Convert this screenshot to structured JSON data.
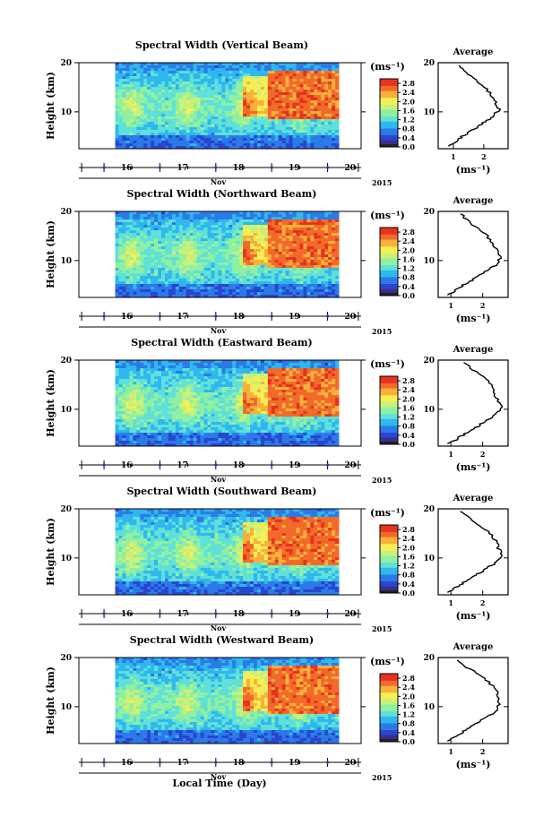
{
  "figure": {
    "xlabel": "Local Time (Day)",
    "month_label": "Nov",
    "year_label": "2015",
    "ylabel": "Height (km)",
    "unit_label": "(ms⁻¹)",
    "average_title": "Average",
    "average_xlabel": "(ms⁻¹)"
  },
  "chart_data": [
    {
      "type": "heatmap",
      "title": "Spectral Width (Vertical Beam)",
      "x_ticks": [
        "16",
        "17",
        "18",
        "19",
        "20"
      ],
      "xlim": [
        15.55,
        20.6
      ],
      "data_start_day": 16.2,
      "data_end_day": 20.2,
      "ylim": [
        2.5,
        20
      ],
      "y_ticks": [
        "10",
        "20"
      ],
      "y_tick_values": [
        10,
        20
      ],
      "colorbar_ticks": [
        "0.0",
        "0.4",
        "0.8",
        "1.2",
        "1.6",
        "2.0",
        "2.4",
        "2.8"
      ],
      "colorbar_range": [
        0,
        3
      ],
      "average": {
        "title": "Average",
        "xlim": [
          0.5,
          2.8
        ],
        "x_ticks": [
          "1",
          "2"
        ],
        "x_tick_values": [
          1,
          2
        ],
        "ylim": [
          2.5,
          20
        ],
        "y_ticks": [
          "10",
          "20"
        ],
        "y_tick_values": [
          10,
          20
        ],
        "profile": [
          [
            0.9,
            3
          ],
          [
            1.1,
            4
          ],
          [
            1.3,
            5
          ],
          [
            1.55,
            6
          ],
          [
            1.8,
            7
          ],
          [
            2.05,
            8
          ],
          [
            2.3,
            9
          ],
          [
            2.5,
            10.5
          ],
          [
            2.4,
            12
          ],
          [
            2.25,
            13.5
          ],
          [
            2.05,
            15
          ],
          [
            1.75,
            16.5
          ],
          [
            1.45,
            18
          ],
          [
            1.2,
            19.5
          ]
        ]
      }
    },
    {
      "type": "heatmap",
      "title": "Spectral Width (Northward Beam)",
      "x_ticks": [
        "16",
        "17",
        "18",
        "19",
        "20"
      ],
      "xlim": [
        15.55,
        20.6
      ],
      "data_start_day": 16.2,
      "data_end_day": 20.2,
      "ylim": [
        2.5,
        20
      ],
      "y_ticks": [
        "10",
        "20"
      ],
      "y_tick_values": [
        10,
        20
      ],
      "colorbar_ticks": [
        "0.0",
        "0.4",
        "0.8",
        "1.2",
        "1.6",
        "2.0",
        "2.4",
        "2.8"
      ],
      "colorbar_range": [
        0,
        3
      ],
      "average": {
        "title": "Average",
        "xlim": [
          0.6,
          2.8
        ],
        "x_ticks": [
          "1",
          "2"
        ],
        "x_tick_values": [
          1,
          2
        ],
        "ylim": [
          2.5,
          20
        ],
        "y_ticks": [
          "10",
          "20"
        ],
        "y_tick_values": [
          10,
          20
        ],
        "profile": [
          [
            0.95,
            3
          ],
          [
            1.15,
            4
          ],
          [
            1.4,
            5
          ],
          [
            1.65,
            6
          ],
          [
            1.9,
            7
          ],
          [
            2.15,
            8
          ],
          [
            2.4,
            9
          ],
          [
            2.55,
            10.5
          ],
          [
            2.45,
            12
          ],
          [
            2.3,
            13.5
          ],
          [
            2.15,
            15
          ],
          [
            1.85,
            16.5
          ],
          [
            1.55,
            18
          ],
          [
            1.3,
            19.5
          ]
        ]
      }
    },
    {
      "type": "heatmap",
      "title": "Spectral Width (Eastward Beam)",
      "x_ticks": [
        "16",
        "17",
        "18",
        "19",
        "20"
      ],
      "xlim": [
        15.55,
        20.6
      ],
      "data_start_day": 16.2,
      "data_end_day": 20.2,
      "ylim": [
        2.5,
        20
      ],
      "y_ticks": [
        "10",
        "20"
      ],
      "y_tick_values": [
        10,
        20
      ],
      "colorbar_ticks": [
        "0.0",
        "0.4",
        "0.8",
        "1.2",
        "1.6",
        "2.0",
        "2.4",
        "2.8"
      ],
      "colorbar_range": [
        0,
        3
      ],
      "average": {
        "title": "Average",
        "xlim": [
          0.6,
          2.8
        ],
        "x_ticks": [
          "1",
          "2"
        ],
        "x_tick_values": [
          1,
          2
        ],
        "ylim": [
          2.5,
          20
        ],
        "y_ticks": [
          "10",
          "20"
        ],
        "y_tick_values": [
          10,
          20
        ],
        "profile": [
          [
            0.95,
            3
          ],
          [
            1.2,
            4
          ],
          [
            1.45,
            5
          ],
          [
            1.7,
            6
          ],
          [
            1.95,
            7
          ],
          [
            2.2,
            8
          ],
          [
            2.45,
            9
          ],
          [
            2.6,
            10.5
          ],
          [
            2.45,
            12
          ],
          [
            2.35,
            13.5
          ],
          [
            2.3,
            15
          ],
          [
            2.0,
            16.5
          ],
          [
            1.7,
            18
          ],
          [
            1.4,
            19.5
          ]
        ]
      }
    },
    {
      "type": "heatmap",
      "title": "Spectral Width (Southward Beam)",
      "x_ticks": [
        "16",
        "17",
        "18",
        "19",
        "20"
      ],
      "xlim": [
        15.55,
        20.6
      ],
      "data_start_day": 16.2,
      "data_end_day": 20.2,
      "ylim": [
        2.5,
        20
      ],
      "y_ticks": [
        "10",
        "20"
      ],
      "y_tick_values": [
        10,
        20
      ],
      "colorbar_ticks": [
        "0.0",
        "0.4",
        "0.8",
        "1.2",
        "1.6",
        "2.0",
        "2.4",
        "2.8"
      ],
      "colorbar_range": [
        0,
        3
      ],
      "average": {
        "title": "Average",
        "xlim": [
          0.6,
          2.8
        ],
        "x_ticks": [
          "1",
          "2"
        ],
        "x_tick_values": [
          1,
          2
        ],
        "ylim": [
          2.5,
          20
        ],
        "y_ticks": [
          "10",
          "20"
        ],
        "y_tick_values": [
          10,
          20
        ],
        "profile": [
          [
            0.95,
            3
          ],
          [
            1.15,
            4
          ],
          [
            1.4,
            5
          ],
          [
            1.65,
            6
          ],
          [
            1.9,
            7
          ],
          [
            2.15,
            8
          ],
          [
            2.4,
            9
          ],
          [
            2.6,
            10.5
          ],
          [
            2.5,
            12
          ],
          [
            2.4,
            13.5
          ],
          [
            2.25,
            15
          ],
          [
            1.95,
            16.5
          ],
          [
            1.6,
            18
          ],
          [
            1.3,
            19.5
          ]
        ]
      }
    },
    {
      "type": "heatmap",
      "title": "Spectral Width (Westward Beam)",
      "x_ticks": [
        "16",
        "17",
        "18",
        "19",
        "20"
      ],
      "xlim": [
        15.55,
        20.6
      ],
      "data_start_day": 16.2,
      "data_end_day": 20.2,
      "ylim": [
        2.5,
        20
      ],
      "y_ticks": [
        "10",
        "20"
      ],
      "y_tick_values": [
        10,
        20
      ],
      "colorbar_ticks": [
        "0.0",
        "0.4",
        "0.8",
        "1.2",
        "1.6",
        "2.0",
        "2.4",
        "2.8"
      ],
      "colorbar_range": [
        0,
        3
      ],
      "average": {
        "title": "Average",
        "xlim": [
          0.6,
          2.8
        ],
        "x_ticks": [
          "1",
          "2"
        ],
        "x_tick_values": [
          1,
          2
        ],
        "ylim": [
          2.5,
          20
        ],
        "y_ticks": [
          "10",
          "20"
        ],
        "y_tick_values": [
          10,
          20
        ],
        "profile": [
          [
            0.95,
            3
          ],
          [
            1.15,
            4
          ],
          [
            1.4,
            5
          ],
          [
            1.65,
            6
          ],
          [
            1.9,
            7
          ],
          [
            2.15,
            8
          ],
          [
            2.4,
            9
          ],
          [
            2.55,
            10.5
          ],
          [
            2.5,
            12
          ],
          [
            2.4,
            13.5
          ],
          [
            2.2,
            15
          ],
          [
            1.9,
            16.5
          ],
          [
            1.5,
            18
          ],
          [
            1.2,
            19.5
          ]
        ]
      }
    }
  ],
  "colors": {
    "colormap": [
      "#3a2d8a",
      "#2a45d0",
      "#2a7be8",
      "#2fb7f0",
      "#5fe0d8",
      "#8ef0a0",
      "#c8f07a",
      "#f5ee55",
      "#f8b03a",
      "#f26a2a",
      "#e8321e"
    ],
    "marker": "#2a3db0"
  }
}
